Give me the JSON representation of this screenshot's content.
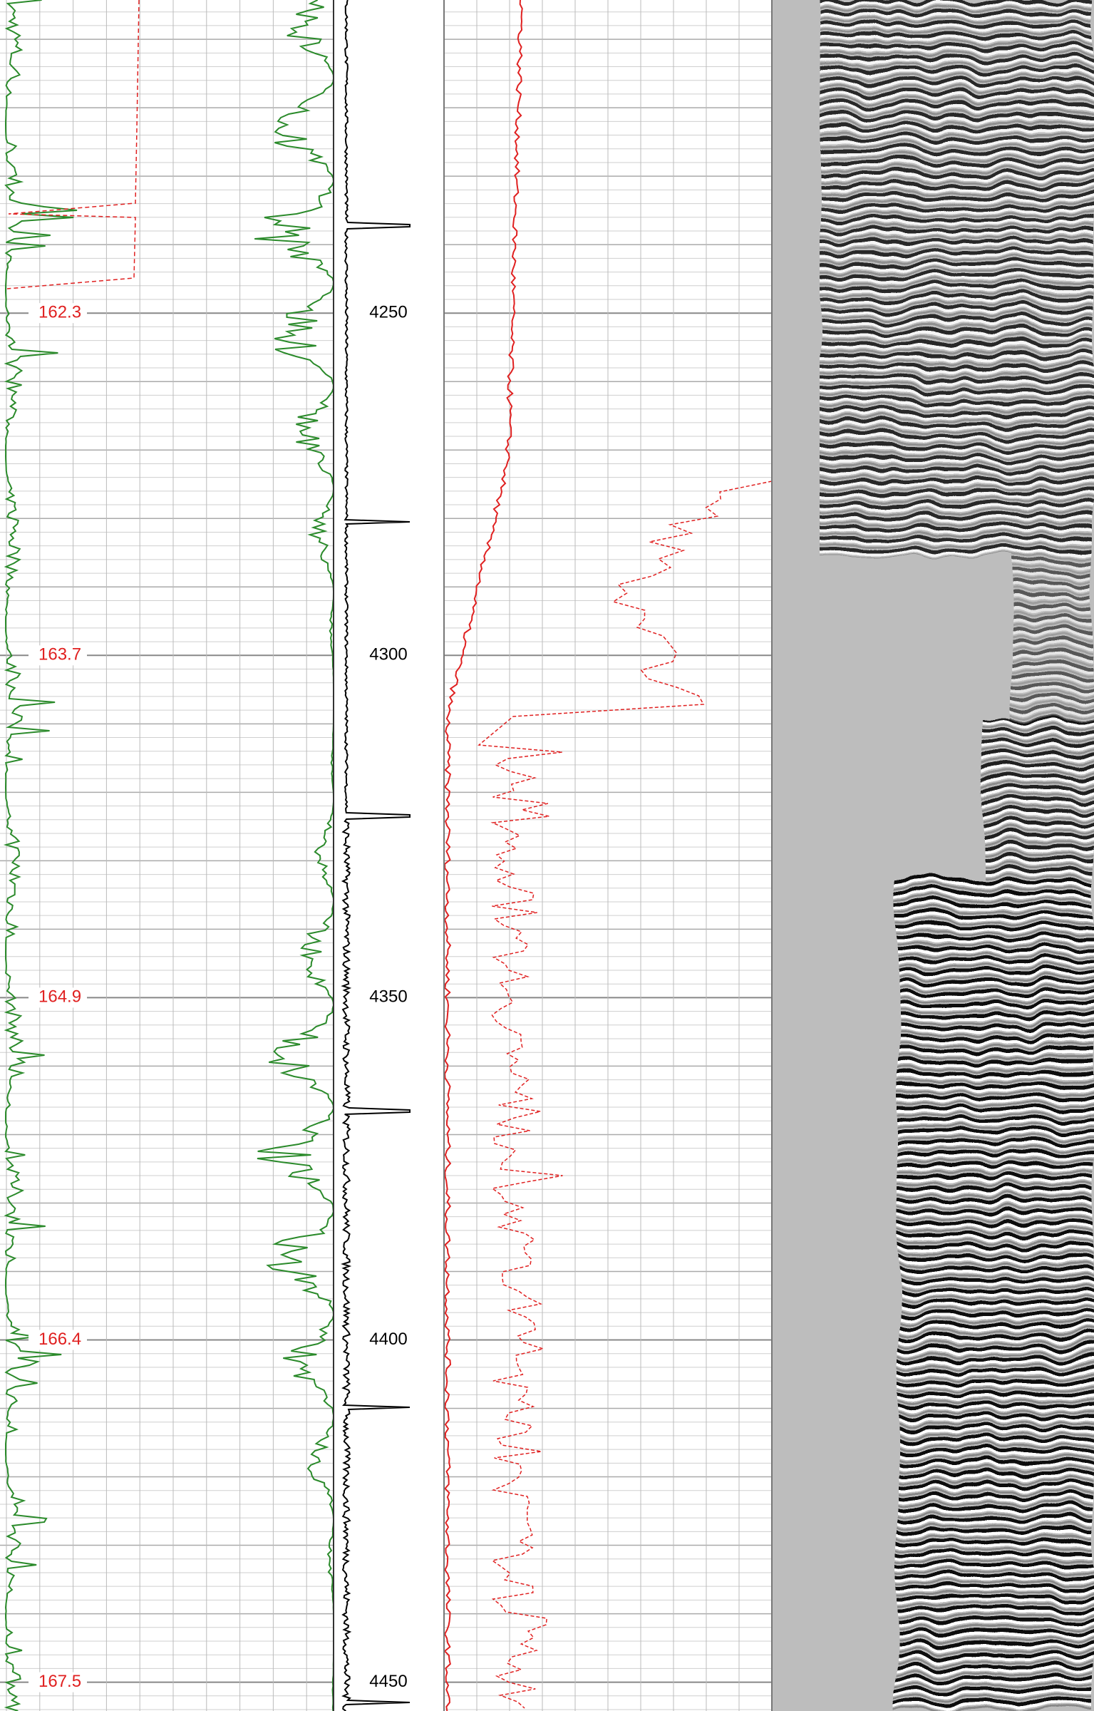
{
  "depth_track": {
    "labels": [
      4250,
      4300,
      4350,
      4400,
      4450
    ]
  },
  "time_track": {
    "labels": [
      "162.3",
      "163.7",
      "164.9",
      "166.4",
      "167.5"
    ]
  }
}
